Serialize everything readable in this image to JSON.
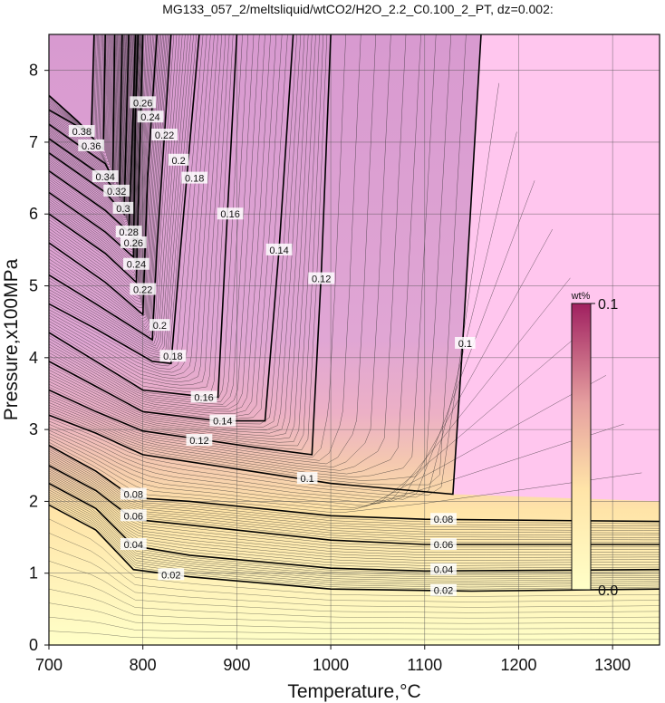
{
  "chart_data": {
    "type": "heatmap",
    "title": "MG133_057_2/meltsliquid/wtCO2/H2O_2.2_C0.100_2_PT, dz=0.002:",
    "xlabel": "Temperature,°C",
    "ylabel": "Pressure,x100MPa",
    "xlim": [
      700,
      1350
    ],
    "ylim": [
      0,
      8.5
    ],
    "x_ticks": [
      700,
      800,
      900,
      1000,
      1100,
      1200,
      1300
    ],
    "y_ticks": [
      0,
      1,
      2,
      3,
      4,
      5,
      6,
      7,
      8
    ],
    "x_tick_labels": [
      "700",
      "800",
      "900",
      "1000",
      "1100",
      "1200",
      "1300"
    ],
    "y_tick_labels": [
      "0",
      "1",
      "2",
      "3",
      "4",
      "5",
      "6",
      "7",
      "8"
    ],
    "grid": true,
    "colorbar": {
      "unit": "wt%",
      "min": 0.0,
      "max": 0.1,
      "min_label": "0.0",
      "max_label": "0.1",
      "stops": [
        "#ffffc8",
        "#ffe4a8",
        "#e6a0a0",
        "#a02060"
      ],
      "saturated_color": "#ffc6ee"
    },
    "contour_interval": 0.002,
    "contours": [
      {
        "level": 0.02,
        "label": "0.02",
        "points": [
          [
            700,
            1.95
          ],
          [
            750,
            1.6
          ],
          [
            790,
            1.05
          ],
          [
            850,
            0.95
          ],
          [
            1000,
            0.78
          ],
          [
            1150,
            0.75
          ],
          [
            1350,
            0.78
          ]
        ],
        "labels": [
          [
            830,
            0.98
          ],
          [
            1120,
            0.76
          ]
        ]
      },
      {
        "level": 0.04,
        "label": "0.04",
        "points": [
          [
            700,
            2.25
          ],
          [
            750,
            1.9
          ],
          [
            790,
            1.38
          ],
          [
            850,
            1.25
          ],
          [
            1000,
            1.07
          ],
          [
            1100,
            1.03
          ],
          [
            1350,
            1.05
          ]
        ],
        "labels": [
          [
            790,
            1.4
          ],
          [
            1120,
            1.05
          ]
        ]
      },
      {
        "level": 0.06,
        "label": "0.06",
        "points": [
          [
            700,
            2.5
          ],
          [
            750,
            2.15
          ],
          [
            790,
            1.75
          ],
          [
            850,
            1.67
          ],
          [
            1000,
            1.46
          ],
          [
            1100,
            1.4
          ],
          [
            1350,
            1.4
          ]
        ],
        "labels": [
          [
            790,
            1.8
          ],
          [
            1120,
            1.4
          ]
        ]
      },
      {
        "level": 0.08,
        "label": "0.08",
        "points": [
          [
            700,
            2.78
          ],
          [
            750,
            2.42
          ],
          [
            790,
            2.05
          ],
          [
            850,
            2.0
          ],
          [
            1000,
            1.8
          ],
          [
            1100,
            1.75
          ],
          [
            1350,
            1.72
          ]
        ],
        "labels": [
          [
            790,
            2.1
          ],
          [
            1120,
            1.75
          ]
        ]
      },
      {
        "level": 0.1,
        "label": "0.1",
        "points": [
          [
            700,
            3.2
          ],
          [
            750,
            2.95
          ],
          [
            800,
            2.65
          ],
          [
            900,
            2.45
          ],
          [
            1000,
            2.25
          ],
          [
            1130,
            2.1
          ],
          [
            1140,
            4.1
          ],
          [
            1160,
            8.5
          ]
        ],
        "labels": [
          [
            975,
            2.32
          ],
          [
            1143,
            4.2
          ]
        ]
      },
      {
        "level": 0.12,
        "label": "0.12",
        "points": [
          [
            700,
            3.55
          ],
          [
            750,
            3.25
          ],
          [
            800,
            2.98
          ],
          [
            920,
            2.75
          ],
          [
            980,
            2.65
          ],
          [
            990,
            5.2
          ],
          [
            1000,
            8.5
          ]
        ],
        "labels": [
          [
            860,
            2.85
          ],
          [
            990,
            5.1
          ]
        ]
      },
      {
        "level": 0.14,
        "label": "0.14",
        "points": [
          [
            700,
            3.95
          ],
          [
            750,
            3.6
          ],
          [
            800,
            3.25
          ],
          [
            880,
            3.12
          ],
          [
            930,
            3.12
          ],
          [
            945,
            5.5
          ],
          [
            960,
            8.5
          ]
        ],
        "labels": [
          [
            885,
            3.12
          ],
          [
            945,
            5.5
          ]
        ]
      },
      {
        "level": 0.16,
        "label": "0.16",
        "points": [
          [
            700,
            4.35
          ],
          [
            750,
            3.95
          ],
          [
            800,
            3.55
          ],
          [
            870,
            3.45
          ],
          [
            880,
            3.45
          ],
          [
            890,
            6.0
          ],
          [
            900,
            8.5
          ]
        ],
        "labels": [
          [
            865,
            3.45
          ],
          [
            893,
            6.0
          ]
        ]
      },
      {
        "level": 0.18,
        "label": "0.18",
        "points": [
          [
            700,
            4.75
          ],
          [
            750,
            4.4
          ],
          [
            810,
            3.95
          ],
          [
            830,
            3.92
          ],
          [
            840,
            5.5
          ],
          [
            860,
            8.5
          ]
        ],
        "labels": [
          [
            832,
            4.02
          ],
          [
            855,
            6.5
          ]
        ]
      },
      {
        "level": 0.2,
        "label": "0.2",
        "points": [
          [
            700,
            5.15
          ],
          [
            750,
            4.75
          ],
          [
            810,
            4.25
          ],
          [
            815,
            5.5
          ],
          [
            830,
            8.5
          ]
        ],
        "labels": [
          [
            818,
            4.45
          ],
          [
            838,
            6.75
          ]
        ]
      },
      {
        "level": 0.22,
        "label": "0.22",
        "points": [
          [
            700,
            5.6
          ],
          [
            760,
            5.05
          ],
          [
            800,
            4.6
          ],
          [
            805,
            6.5
          ],
          [
            815,
            8.5
          ]
        ],
        "labels": [
          [
            800,
            4.95
          ],
          [
            823,
            7.1
          ]
        ]
      },
      {
        "level": 0.24,
        "label": "0.24",
        "points": [
          [
            700,
            6.0
          ],
          [
            760,
            5.45
          ],
          [
            793,
            5.05
          ],
          [
            797,
            7.0
          ],
          [
            800,
            8.5
          ]
        ],
        "labels": [
          [
            793,
            5.3
          ],
          [
            808,
            7.35
          ]
        ]
      },
      {
        "level": 0.26,
        "label": "0.26",
        "points": [
          [
            700,
            6.3
          ],
          [
            760,
            5.75
          ],
          [
            790,
            5.4
          ],
          [
            792,
            7.3
          ],
          [
            795,
            8.5
          ]
        ],
        "labels": [
          [
            790,
            5.6
          ],
          [
            800,
            7.55
          ]
        ]
      },
      {
        "level": 0.28,
        "label": "0.28",
        "points": [
          [
            700,
            6.6
          ],
          [
            760,
            6.05
          ],
          [
            785,
            5.75
          ],
          [
            790,
            7.5
          ],
          [
            792,
            8.5
          ]
        ],
        "labels": [
          [
            785,
            5.75
          ]
        ]
      },
      {
        "level": 0.3,
        "label": "0.3",
        "points": [
          [
            700,
            6.85
          ],
          [
            760,
            6.3
          ],
          [
            780,
            6.0
          ],
          [
            785,
            8.5
          ]
        ],
        "labels": [
          [
            779,
            6.08
          ]
        ]
      },
      {
        "level": 0.32,
        "label": "0.32",
        "points": [
          [
            700,
            7.05
          ],
          [
            760,
            6.5
          ],
          [
            775,
            6.25
          ],
          [
            778,
            8.5
          ]
        ],
        "labels": [
          [
            772,
            6.32
          ]
        ]
      },
      {
        "level": 0.34,
        "label": "0.34",
        "points": [
          [
            700,
            7.25
          ],
          [
            760,
            6.7
          ],
          [
            768,
            6.5
          ],
          [
            770,
            8.5
          ]
        ],
        "labels": [
          [
            760,
            6.52
          ]
        ]
      },
      {
        "level": 0.36,
        "label": "0.36",
        "points": [
          [
            700,
            7.45
          ],
          [
            740,
            7.15
          ],
          [
            758,
            6.9
          ],
          [
            760,
            8.5
          ]
        ],
        "labels": [
          [
            745,
            6.95
          ]
        ]
      },
      {
        "level": 0.38,
        "label": "0.38",
        "points": [
          [
            700,
            7.65
          ],
          [
            730,
            7.3
          ],
          [
            745,
            7.1
          ],
          [
            748,
            8.5
          ]
        ],
        "labels": [
          [
            735,
            7.15
          ]
        ]
      }
    ]
  }
}
